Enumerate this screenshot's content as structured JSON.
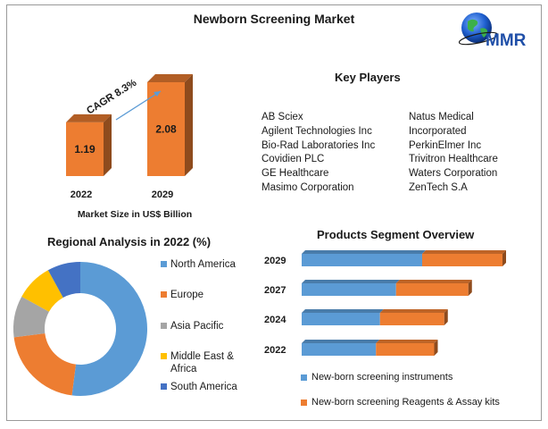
{
  "page": {
    "title": "Newborn Screening Market",
    "logo_text": "MMR"
  },
  "chart_data": [
    {
      "type": "bar",
      "categories": [
        "2022",
        "2029"
      ],
      "values": [
        1.19,
        2.08
      ],
      "xlabel": "Market Size in US$ Billion",
      "annotation": "CAGR 8.3%",
      "color": "#ed7d31"
    },
    {
      "type": "table",
      "title": "Key Players",
      "columns": [
        [
          "AB Sciex",
          "Agilent Technologies Inc",
          "Bio-Rad Laboratories Inc",
          "Covidien PLC",
          "GE Healthcare",
          "Masimo Corporation"
        ],
        [
          "Natus Medical",
          "Incorporated",
          "PerkinElmer Inc",
          "Trivitron Healthcare",
          "Waters Corporation",
          "ZenTech S.A"
        ]
      ]
    },
    {
      "type": "pie",
      "subtype": "donut",
      "title": "Regional Analysis in 2022 (%)",
      "legend_position": "right",
      "slices": [
        {
          "label": "North America",
          "value": 52,
          "color": "#5b9bd5"
        },
        {
          "label": "Europe",
          "value": 21,
          "color": "#ed7d31"
        },
        {
          "label": "Asia Pacific",
          "value": 10,
          "color": "#a5a5a5"
        },
        {
          "label": "Middle East & Africa",
          "value": 9,
          "color": "#ffc000"
        },
        {
          "label": "South America",
          "value": 8,
          "color": "#4472c4"
        }
      ]
    },
    {
      "type": "bar",
      "orientation": "horizontal",
      "stacked": true,
      "title": "Products Segment Overview",
      "categories": [
        "2029",
        "2027",
        "2024",
        "2022"
      ],
      "legend_position": "bottom",
      "series": [
        {
          "name": "New-born screening instruments",
          "values": [
            6.0,
            4.7,
            3.9,
            3.7
          ],
          "color": "#5b9bd5"
        },
        {
          "name": "New-born screening Reagents & Assay kits",
          "values": [
            4.0,
            3.6,
            3.2,
            2.9
          ],
          "color": "#ed7d31"
        }
      ]
    }
  ]
}
